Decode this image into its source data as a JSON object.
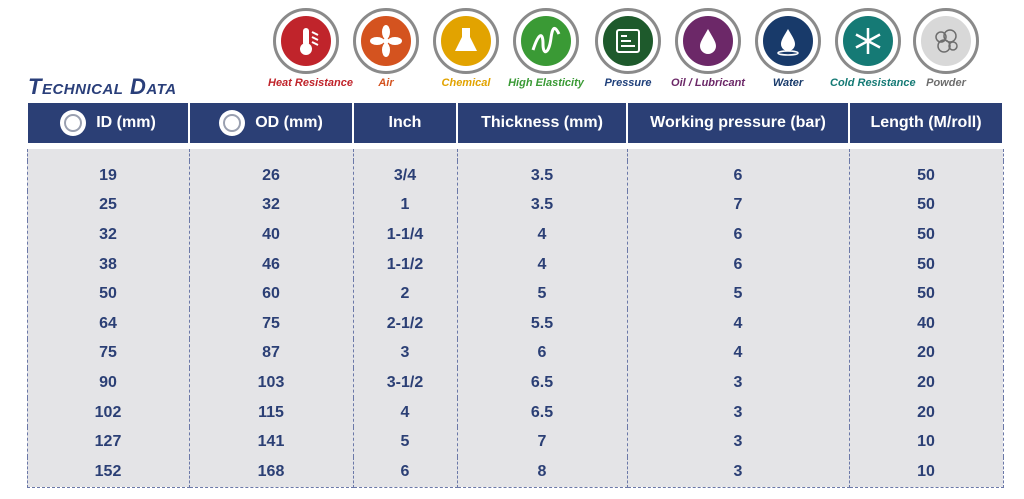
{
  "title": "Technical Data",
  "badges": [
    {
      "label": "Heat Resistance",
      "icon": "thermometer-icon",
      "color": "#c0242b",
      "label_color": "#c0242b"
    },
    {
      "label": "Air",
      "icon": "fan-icon",
      "color": "#d4531f",
      "label_color": "#d4531f"
    },
    {
      "label": "Chemical",
      "icon": "flask-icon",
      "color": "#e2a300",
      "label_color": "#e2a300"
    },
    {
      "label": "High Elasticity",
      "icon": "spring-icon",
      "color": "#3a9a35",
      "label_color": "#3a9a35"
    },
    {
      "label": "Pressure",
      "icon": "gauge-icon",
      "color": "#1e5a2c",
      "label_color": "#1e3f7a"
    },
    {
      "label": "Oil / Lubricant",
      "icon": "oil-drop-icon",
      "color": "#6c2868",
      "label_color": "#6c2868"
    },
    {
      "label": "Water",
      "icon": "water-drop-icon",
      "color": "#183a6a",
      "label_color": "#183a6a"
    },
    {
      "label": "Cold Resistance",
      "icon": "snowflake-icon",
      "color": "#157a75",
      "label_color": "#157a75"
    },
    {
      "label": "Powder",
      "icon": "powder-icon",
      "color": "#6e6e6e",
      "label_color": "#6e6e6e"
    }
  ],
  "table": {
    "headers": [
      "ID (mm)",
      "OD (mm)",
      "Inch",
      "Thickness (mm)",
      "Working pressure (bar)",
      "Length (M/roll)"
    ],
    "rows": [
      [
        "19",
        "26",
        "3/4",
        "3.5",
        "6",
        "50"
      ],
      [
        "25",
        "32",
        "1",
        "3.5",
        "7",
        "50"
      ],
      [
        "32",
        "40",
        "1-1/4",
        "4",
        "6",
        "50"
      ],
      [
        "38",
        "46",
        "1-1/2",
        "4",
        "6",
        "50"
      ],
      [
        "50",
        "60",
        "2",
        "5",
        "5",
        "50"
      ],
      [
        "64",
        "75",
        "2-1/2",
        "5.5",
        "4",
        "40"
      ],
      [
        "75",
        "87",
        "3",
        "6",
        "4",
        "20"
      ],
      [
        "90",
        "103",
        "3-1/2",
        "6.5",
        "3",
        "20"
      ],
      [
        "102",
        "115",
        "4",
        "6.5",
        "3",
        "20"
      ],
      [
        "127",
        "141",
        "5",
        "7",
        "3",
        "10"
      ],
      [
        "152",
        "168",
        "6",
        "8",
        "3",
        "10"
      ]
    ]
  },
  "colors": {
    "header_bg": "#2b3f75",
    "body_bg": "#e4e4e7",
    "text": "#2b3f75"
  }
}
